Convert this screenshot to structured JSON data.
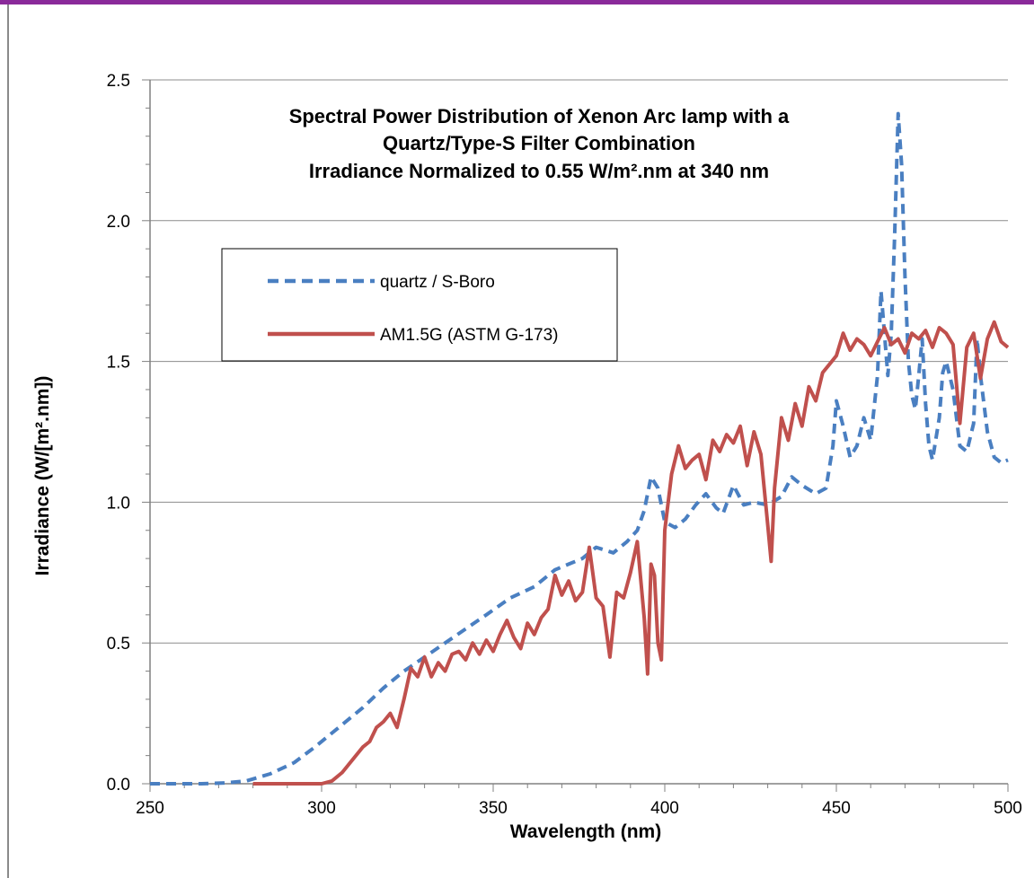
{
  "chart_data": {
    "type": "line",
    "title_lines": [
      "Spectral Power Distribution of Xenon Arc lamp with a",
      "Quartz/Type-S Filter Combination",
      "Irradiance Normalized to 0.55 W/m².nm  at 340 nm"
    ],
    "xlabel": "Wavelength (nm)",
    "ylabel": "Irradiance (W/[m².nm])",
    "xlim": [
      250,
      500
    ],
    "ylim": [
      0,
      2.5
    ],
    "x_ticks": [
      "250",
      "300",
      "350",
      "400",
      "450",
      "500"
    ],
    "y_ticks": [
      "0.0",
      "0.5",
      "1.0",
      "1.5",
      "2.0",
      "2.5"
    ],
    "grid": "horizontal",
    "legend_position": "upper-left",
    "series": [
      {
        "name": "quartz / S-Boro",
        "color": "#4a7fc1",
        "style": "dashed",
        "points": [
          [
            250,
            0
          ],
          [
            265,
            0
          ],
          [
            272,
            0.003
          ],
          [
            278,
            0.01
          ],
          [
            285,
            0.035
          ],
          [
            292,
            0.075
          ],
          [
            298,
            0.13
          ],
          [
            305,
            0.2
          ],
          [
            312,
            0.27
          ],
          [
            318,
            0.34
          ],
          [
            324,
            0.4
          ],
          [
            330,
            0.45
          ],
          [
            336,
            0.5
          ],
          [
            342,
            0.55
          ],
          [
            348,
            0.6
          ],
          [
            355,
            0.66
          ],
          [
            362,
            0.7
          ],
          [
            368,
            0.76
          ],
          [
            372,
            0.78
          ],
          [
            376,
            0.8
          ],
          [
            380,
            0.84
          ],
          [
            385,
            0.82
          ],
          [
            389,
            0.86
          ],
          [
            392,
            0.9
          ],
          [
            394,
            0.97
          ],
          [
            396,
            1.09
          ],
          [
            398,
            1.05
          ],
          [
            400,
            0.93
          ],
          [
            403,
            0.91
          ],
          [
            406,
            0.94
          ],
          [
            409,
            0.99
          ],
          [
            412,
            1.03
          ],
          [
            415,
            0.98
          ],
          [
            417,
            0.96
          ],
          [
            420,
            1.06
          ],
          [
            423,
            0.99
          ],
          [
            426,
            1.0
          ],
          [
            430,
            0.99
          ],
          [
            434,
            1.02
          ],
          [
            437,
            1.09
          ],
          [
            440,
            1.06
          ],
          [
            444,
            1.03
          ],
          [
            447,
            1.05
          ],
          [
            449,
            1.2
          ],
          [
            450,
            1.36
          ],
          [
            452,
            1.27
          ],
          [
            454,
            1.16
          ],
          [
            456,
            1.2
          ],
          [
            458,
            1.3
          ],
          [
            460,
            1.22
          ],
          [
            462,
            1.45
          ],
          [
            463,
            1.75
          ],
          [
            464,
            1.6
          ],
          [
            465,
            1.45
          ],
          [
            466,
            1.6
          ],
          [
            467,
            1.95
          ],
          [
            468,
            2.38
          ],
          [
            469,
            2.2
          ],
          [
            470,
            1.8
          ],
          [
            471,
            1.5
          ],
          [
            472,
            1.38
          ],
          [
            473,
            1.33
          ],
          [
            474,
            1.45
          ],
          [
            475,
            1.58
          ],
          [
            476,
            1.35
          ],
          [
            477,
            1.2
          ],
          [
            478,
            1.15
          ],
          [
            480,
            1.3
          ],
          [
            481,
            1.46
          ],
          [
            482,
            1.5
          ],
          [
            484,
            1.4
          ],
          [
            485,
            1.3
          ],
          [
            486,
            1.2
          ],
          [
            488,
            1.18
          ],
          [
            490,
            1.28
          ],
          [
            491,
            1.58
          ],
          [
            492,
            1.45
          ],
          [
            494,
            1.25
          ],
          [
            496,
            1.16
          ],
          [
            498,
            1.14
          ],
          [
            500,
            1.15
          ]
        ]
      },
      {
        "name": "AM1.5G (ASTM G-173)",
        "color": "#c0504d",
        "style": "solid",
        "points": [
          [
            280,
            0
          ],
          [
            290,
            0
          ],
          [
            300,
            0
          ],
          [
            303,
            0.01
          ],
          [
            306,
            0.04
          ],
          [
            308,
            0.07
          ],
          [
            310,
            0.1
          ],
          [
            312,
            0.13
          ],
          [
            314,
            0.15
          ],
          [
            316,
            0.2
          ],
          [
            318,
            0.22
          ],
          [
            320,
            0.25
          ],
          [
            322,
            0.2
          ],
          [
            324,
            0.3
          ],
          [
            326,
            0.41
          ],
          [
            328,
            0.38
          ],
          [
            330,
            0.45
          ],
          [
            332,
            0.38
          ],
          [
            334,
            0.43
          ],
          [
            336,
            0.4
          ],
          [
            338,
            0.46
          ],
          [
            340,
            0.47
          ],
          [
            342,
            0.44
          ],
          [
            344,
            0.5
          ],
          [
            346,
            0.46
          ],
          [
            348,
            0.51
          ],
          [
            350,
            0.47
          ],
          [
            352,
            0.53
          ],
          [
            354,
            0.58
          ],
          [
            356,
            0.52
          ],
          [
            358,
            0.48
          ],
          [
            360,
            0.57
          ],
          [
            362,
            0.53
          ],
          [
            364,
            0.59
          ],
          [
            366,
            0.62
          ],
          [
            368,
            0.74
          ],
          [
            370,
            0.67
          ],
          [
            372,
            0.72
          ],
          [
            374,
            0.65
          ],
          [
            376,
            0.68
          ],
          [
            378,
            0.84
          ],
          [
            380,
            0.66
          ],
          [
            382,
            0.63
          ],
          [
            384,
            0.45
          ],
          [
            386,
            0.68
          ],
          [
            388,
            0.66
          ],
          [
            390,
            0.75
          ],
          [
            392,
            0.86
          ],
          [
            394,
            0.59
          ],
          [
            395,
            0.39
          ],
          [
            396,
            0.78
          ],
          [
            397,
            0.74
          ],
          [
            398,
            0.5
          ],
          [
            399,
            0.44
          ],
          [
            400,
            0.9
          ],
          [
            402,
            1.1
          ],
          [
            404,
            1.2
          ],
          [
            406,
            1.12
          ],
          [
            408,
            1.15
          ],
          [
            410,
            1.17
          ],
          [
            412,
            1.08
          ],
          [
            414,
            1.22
          ],
          [
            416,
            1.18
          ],
          [
            418,
            1.24
          ],
          [
            420,
            1.21
          ],
          [
            422,
            1.27
          ],
          [
            424,
            1.13
          ],
          [
            426,
            1.25
          ],
          [
            428,
            1.17
          ],
          [
            430,
            0.92
          ],
          [
            431,
            0.79
          ],
          [
            432,
            1.05
          ],
          [
            434,
            1.3
          ],
          [
            436,
            1.22
          ],
          [
            438,
            1.35
          ],
          [
            440,
            1.27
          ],
          [
            442,
            1.41
          ],
          [
            444,
            1.36
          ],
          [
            446,
            1.46
          ],
          [
            448,
            1.49
          ],
          [
            450,
            1.52
          ],
          [
            452,
            1.6
          ],
          [
            454,
            1.54
          ],
          [
            456,
            1.58
          ],
          [
            458,
            1.56
          ],
          [
            460,
            1.52
          ],
          [
            462,
            1.57
          ],
          [
            464,
            1.62
          ],
          [
            466,
            1.56
          ],
          [
            468,
            1.58
          ],
          [
            470,
            1.53
          ],
          [
            472,
            1.6
          ],
          [
            474,
            1.58
          ],
          [
            476,
            1.61
          ],
          [
            478,
            1.55
          ],
          [
            480,
            1.62
          ],
          [
            482,
            1.6
          ],
          [
            484,
            1.56
          ],
          [
            486,
            1.28
          ],
          [
            488,
            1.55
          ],
          [
            490,
            1.6
          ],
          [
            492,
            1.44
          ],
          [
            494,
            1.58
          ],
          [
            496,
            1.64
          ],
          [
            498,
            1.57
          ],
          [
            500,
            1.55
          ]
        ]
      }
    ]
  }
}
